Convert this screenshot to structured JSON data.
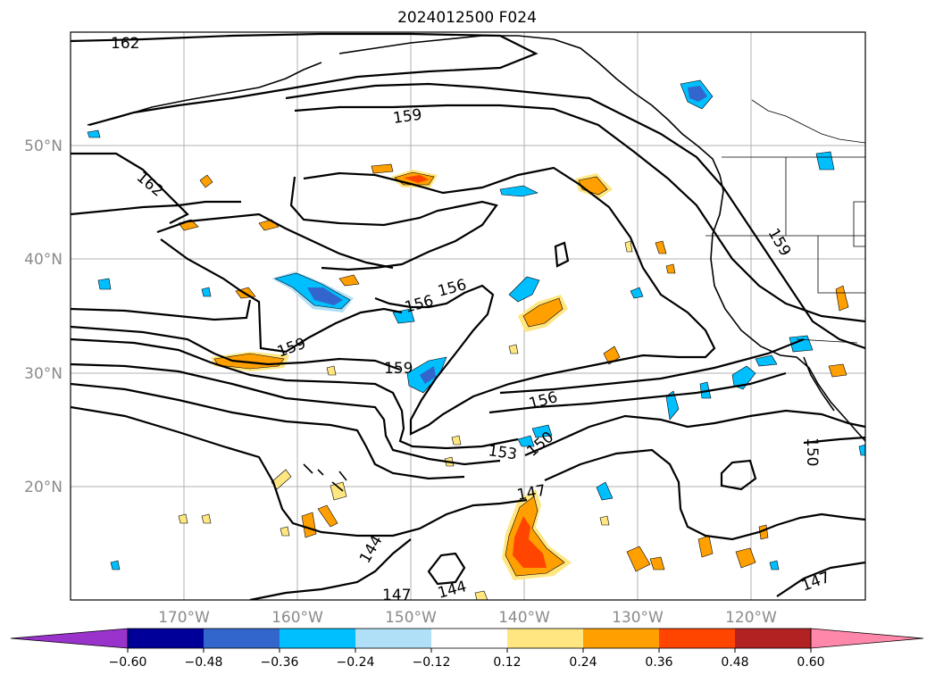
{
  "title": "2024012500 F024",
  "lat_labels": [
    "50°N",
    "40°N",
    "30°N",
    "20°N"
  ],
  "lon_labels": [
    "170°W",
    "160°W",
    "150°W",
    "140°W",
    "130°W",
    "120°W"
  ],
  "contour_labels": [
    "162",
    "162",
    "159",
    "159",
    "159",
    "159",
    "156",
    "156",
    "156",
    "153",
    "150",
    "150",
    "147",
    "147",
    "147",
    "144",
    "144"
  ],
  "colorbar": {
    "ticks": [
      "−0.60",
      "−0.48",
      "−0.36",
      "−0.24",
      "−0.12",
      "0.12",
      "0.24",
      "0.36",
      "0.48",
      "0.60"
    ],
    "colors": [
      "#9933cc",
      "#000099",
      "#3366cc",
      "#00bfff",
      "#b0e0f8",
      "#ffffff",
      "#ffe680",
      "#ffa000",
      "#ff4500",
      "#b22222",
      "#ff88aa"
    ]
  }
}
